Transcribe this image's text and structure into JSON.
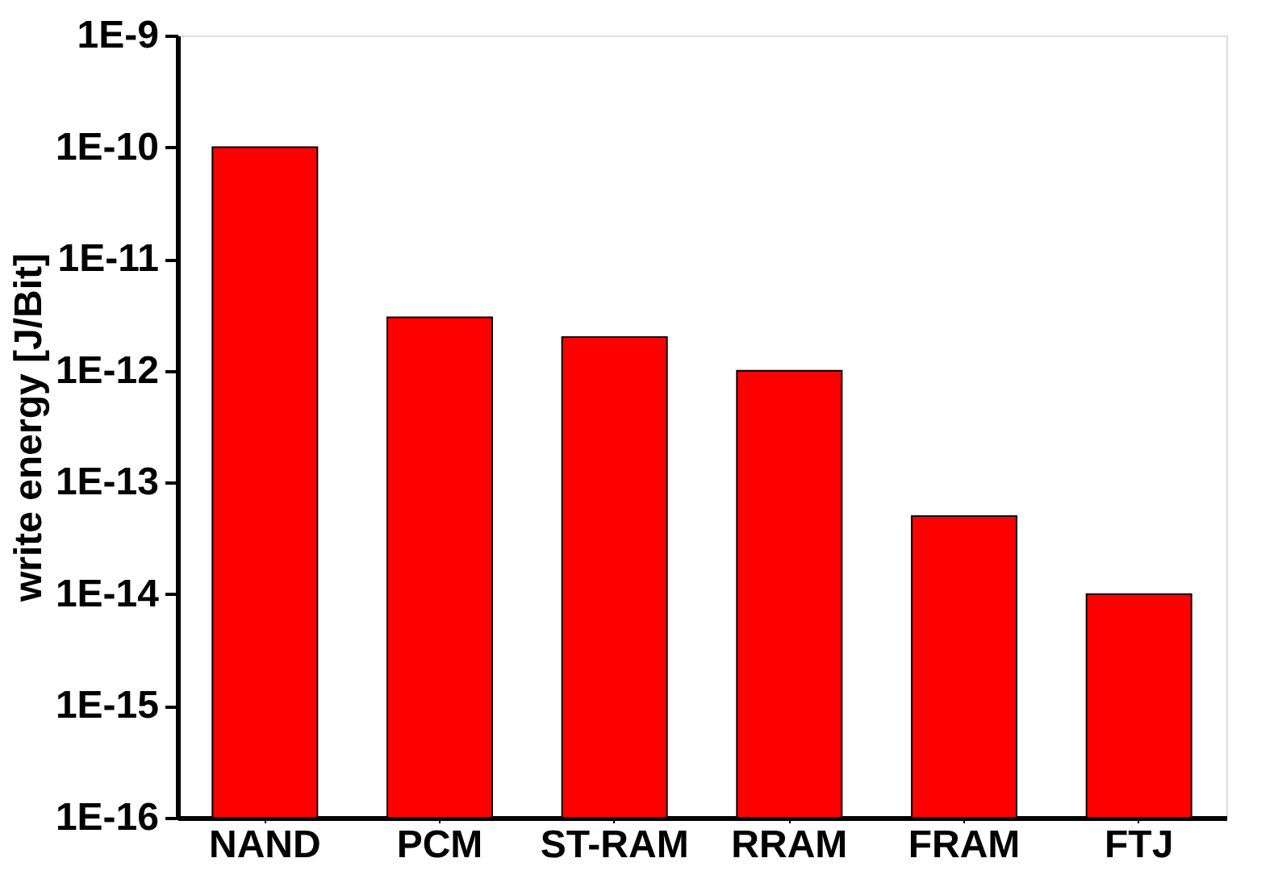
{
  "chart_data": {
    "type": "bar",
    "ylabel": "write energy [J/Bit]",
    "categories": [
      "NAND",
      "PCM",
      "ST-RAM",
      "RRAM",
      "FRAM",
      "FTJ"
    ],
    "values": [
      1e-10,
      3e-12,
      2e-12,
      1e-12,
      5e-14,
      1e-14
    ],
    "color": "#ff0000",
    "log": true,
    "ylim": [
      1e-16,
      1e-09
    ],
    "yticks": [
      {
        "value": 1e-16,
        "label": "1E-16"
      },
      {
        "value": 1e-15,
        "label": "1E-15"
      },
      {
        "value": 1e-14,
        "label": "1E-14"
      },
      {
        "value": 1e-13,
        "label": "1E-13"
      },
      {
        "value": 1e-12,
        "label": "1E-12"
      },
      {
        "value": 1e-11,
        "label": "1E-11"
      },
      {
        "value": 1e-10,
        "label": "1E-10"
      },
      {
        "value": 1e-09,
        "label": "1E-9"
      }
    ],
    "grid": false
  }
}
